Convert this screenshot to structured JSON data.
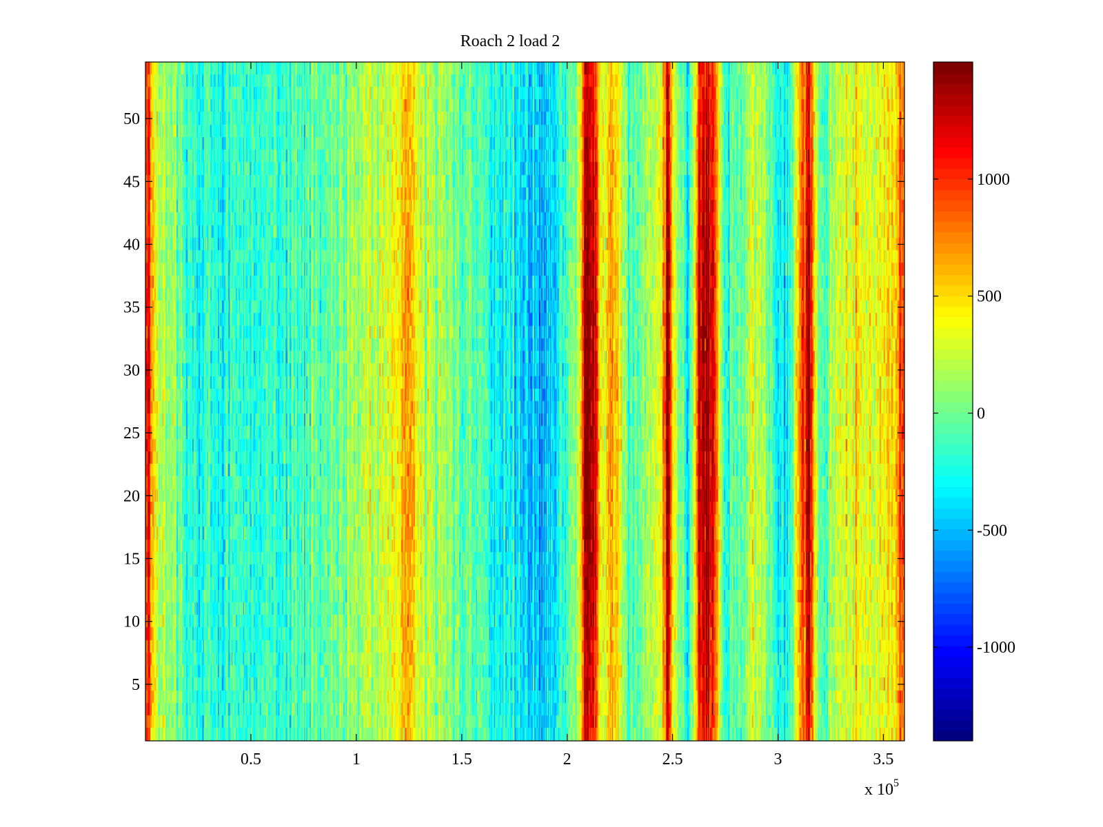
{
  "chart_data": {
    "type": "heatmap",
    "title": "Roach 2 load 2",
    "xlabel": "",
    "ylabel": "",
    "x_multiplier_label": "x 10",
    "x_multiplier_exponent": "5",
    "xlim": [
      0,
      3.6
    ],
    "ylim": [
      0.5,
      54.5
    ],
    "x_ticks": [
      0.5,
      1,
      1.5,
      2,
      2.5,
      3,
      3.5
    ],
    "x_tick_labels": [
      "0.5",
      "1",
      "1.5",
      "2",
      "2.5",
      "3",
      "3.5"
    ],
    "y_ticks": [
      5,
      10,
      15,
      20,
      25,
      30,
      35,
      40,
      45,
      50
    ],
    "y_tick_labels": [
      "5",
      "10",
      "15",
      "20",
      "25",
      "30",
      "35",
      "40",
      "45",
      "50"
    ],
    "rows": 54,
    "columns": 720,
    "colormap": "jet",
    "color_range": [
      -1400,
      1500
    ],
    "colorbar_ticks": [
      -1000,
      -500,
      0,
      500,
      1000
    ],
    "colorbar_tick_labels": [
      "-1000",
      "-500",
      "0",
      "500",
      "1000"
    ],
    "column_profile": [
      {
        "x": 0.0,
        "value": 700
      },
      {
        "x": 0.02,
        "value": 900
      },
      {
        "x": 0.05,
        "value": 200
      },
      {
        "x": 0.2,
        "value": -150
      },
      {
        "x": 0.5,
        "value": -200
      },
      {
        "x": 0.8,
        "value": -50
      },
      {
        "x": 1.0,
        "value": 150
      },
      {
        "x": 1.2,
        "value": 300
      },
      {
        "x": 1.25,
        "value": 650
      },
      {
        "x": 1.3,
        "value": 250
      },
      {
        "x": 1.5,
        "value": 0
      },
      {
        "x": 1.75,
        "value": -300
      },
      {
        "x": 1.9,
        "value": -450
      },
      {
        "x": 2.05,
        "value": 100
      },
      {
        "x": 2.09,
        "value": 1250
      },
      {
        "x": 2.13,
        "value": 1050
      },
      {
        "x": 2.17,
        "value": 150
      },
      {
        "x": 2.21,
        "value": 600
      },
      {
        "x": 2.3,
        "value": -100
      },
      {
        "x": 2.45,
        "value": 300
      },
      {
        "x": 2.48,
        "value": 1300
      },
      {
        "x": 2.51,
        "value": 200
      },
      {
        "x": 2.58,
        "value": -250
      },
      {
        "x": 2.63,
        "value": 1150
      },
      {
        "x": 2.67,
        "value": 1200
      },
      {
        "x": 2.71,
        "value": 700
      },
      {
        "x": 2.75,
        "value": -150
      },
      {
        "x": 2.9,
        "value": 200
      },
      {
        "x": 3.05,
        "value": -300
      },
      {
        "x": 3.15,
        "value": 1200
      },
      {
        "x": 3.2,
        "value": -100
      },
      {
        "x": 3.3,
        "value": 300
      },
      {
        "x": 3.45,
        "value": 350
      },
      {
        "x": 3.55,
        "value": 400
      },
      {
        "x": 3.6,
        "value": 800
      }
    ]
  }
}
